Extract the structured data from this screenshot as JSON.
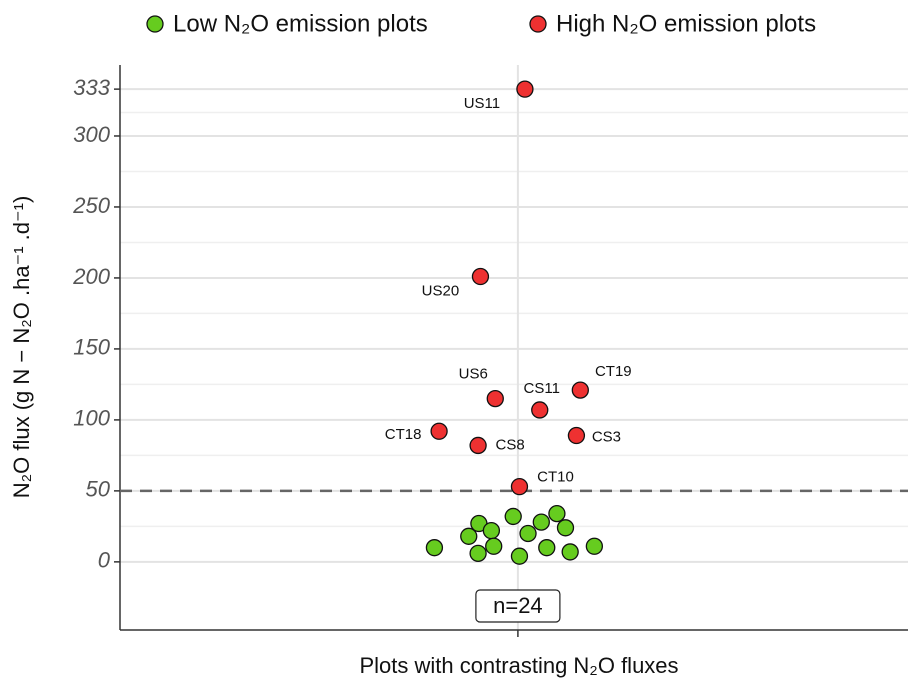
{
  "chart_data": {
    "type": "scatter",
    "xlabel": "Plots with contrasting N₂O fluxes",
    "ylabel": "N₂O flux (g N − N₂O .ha⁻¹ .d⁻¹)",
    "xlim": [
      0.49,
      1.5
    ],
    "xticks": [
      1
    ],
    "ylim": [
      -48,
      350
    ],
    "yticks": [
      0,
      50,
      100,
      150,
      200,
      250,
      300,
      333
    ],
    "grid": true,
    "threshold": 50,
    "annotation": "n=24",
    "legend": "top",
    "series": [
      {
        "name": "Low N₂O emission plots",
        "color": "#66cc1f",
        "x": [
          0.893,
          0.937,
          0.95,
          0.966,
          0.949,
          0.969,
          0.994,
          1.002,
          1.013,
          1.03,
          1.05,
          1.037,
          1.061,
          1.067,
          1.098
        ],
        "values": [
          10,
          18,
          27,
          22,
          6,
          11,
          32,
          4,
          20,
          28,
          34,
          10,
          24,
          7,
          11
        ]
      },
      {
        "name": "High N₂O emission plots",
        "color": "#ee3131",
        "x": [
          1.009,
          0.952,
          0.971,
          1.028,
          1.08,
          0.899,
          0.949,
          1.075,
          1.002
        ],
        "values": [
          333,
          201,
          115,
          107,
          121,
          92,
          82,
          89,
          53
        ],
        "point_labels": [
          "US11",
          "US20",
          "US6",
          "CS11",
          "CT19",
          "CT18",
          "CS8",
          "CS3",
          "CT10"
        ]
      }
    ]
  }
}
